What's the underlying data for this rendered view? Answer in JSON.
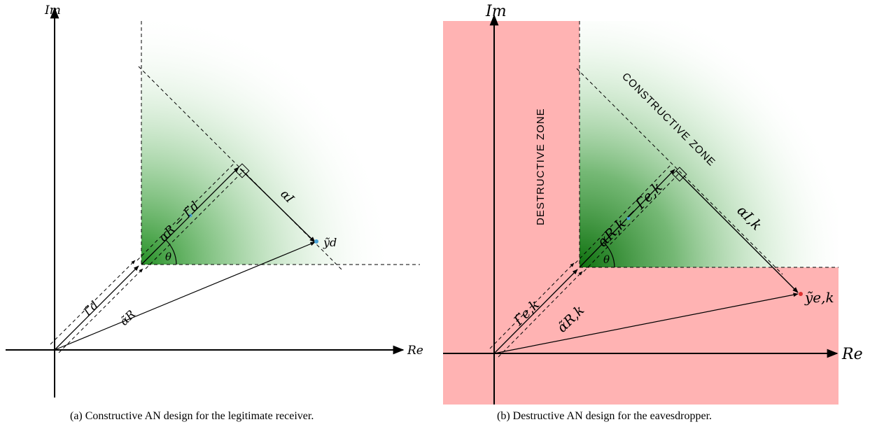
{
  "panel_a": {
    "axis": {
      "im": "Im",
      "re": "Re"
    },
    "labels": {
      "gamma_d": "Γ̃d",
      "alpha_r": "α̃R",
      "alpha_r_minus_gamma": "αR − Γ̃d",
      "alpha_i": "αI",
      "theta": "θ",
      "y_d": "ỹd"
    },
    "caption": "(a) Constructive AN design for the legitimate receiver."
  },
  "panel_b": {
    "axis": {
      "im": "Im",
      "re": "Re"
    },
    "labels": {
      "destructive_zone": "DESTRUCTIVE ZONE",
      "constructive_zone": "CONSTRUCTIVE ZONE",
      "gamma_ek": "Γ̃e,k",
      "alpha_rk": "α̃R,k",
      "alpha_rk_minus_gamma": "αR,k − Γ̃e,k",
      "alpha_ik": "αI,k",
      "theta": "θ",
      "y_ek": "ỹe,k"
    },
    "caption": "(b) Destructive AN design for the eavesdropper."
  },
  "colors": {
    "constructive_green": "#1a8a1a",
    "destructive_red": "#ffb3b3",
    "point_blue": "#4aa3d8",
    "point_red": "#e03030"
  }
}
